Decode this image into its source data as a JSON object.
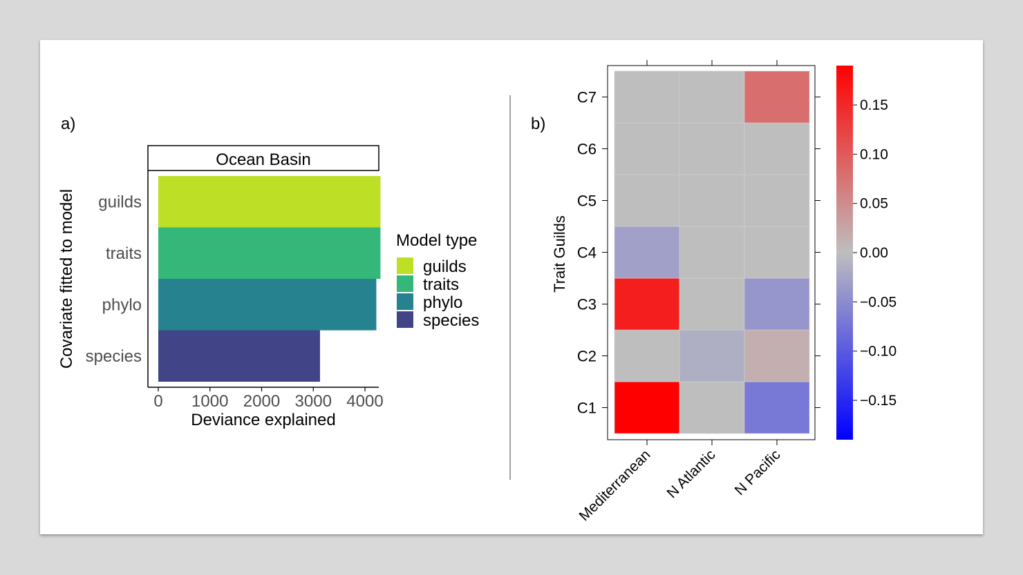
{
  "panels": {
    "a_label": "a)",
    "b_label": "b)"
  },
  "chart_data": [
    {
      "type": "bar",
      "orientation": "horizontal",
      "facet_title": "Ocean Basin",
      "categories": [
        "guilds",
        "traits",
        "phylo",
        "species"
      ],
      "values": [
        4300,
        4300,
        4220,
        3130
      ],
      "colors": [
        "#bddf26",
        "#35b779",
        "#26828e",
        "#414487"
      ],
      "xlabel": "Deviance explained",
      "ylabel": "Covariate fitted to model",
      "xticks": [
        "0",
        "1000",
        "2000",
        "3000",
        "4000"
      ],
      "xlim": [
        0,
        4500
      ],
      "legend": {
        "title": "Model type",
        "items": [
          "guilds",
          "traits",
          "phylo",
          "species"
        ],
        "placement": "right"
      }
    },
    {
      "type": "heatmap",
      "x": [
        "Mediterranean",
        "N Atlantic",
        "N Pacific"
      ],
      "y": [
        "C1",
        "C2",
        "C3",
        "C4",
        "C5",
        "C6",
        "C7"
      ],
      "ylabel": "Trait Guilds",
      "values": [
        [
          0.19,
          0.0,
          -0.07
        ],
        [
          0.0,
          -0.015,
          0.015
        ],
        [
          0.16,
          0.0,
          -0.04
        ],
        [
          -0.03,
          0.0,
          0.0
        ],
        [
          0.0,
          0.0,
          0.0
        ],
        [
          0.0,
          0.0,
          0.0
        ],
        [
          0.0,
          0.0,
          0.08
        ]
      ],
      "color_scale": {
        "min": -0.19,
        "max": 0.19,
        "low_color": "#0000ff",
        "mid_color": "#bebebe",
        "high_color": "#ff0000",
        "ticks": [
          "0.15",
          "0.10",
          "0.05",
          "0.00",
          "−0.05",
          "−0.10",
          "−0.15"
        ],
        "tick_values": [
          0.15,
          0.1,
          0.05,
          0.0,
          -0.05,
          -0.1,
          -0.15
        ]
      }
    }
  ]
}
